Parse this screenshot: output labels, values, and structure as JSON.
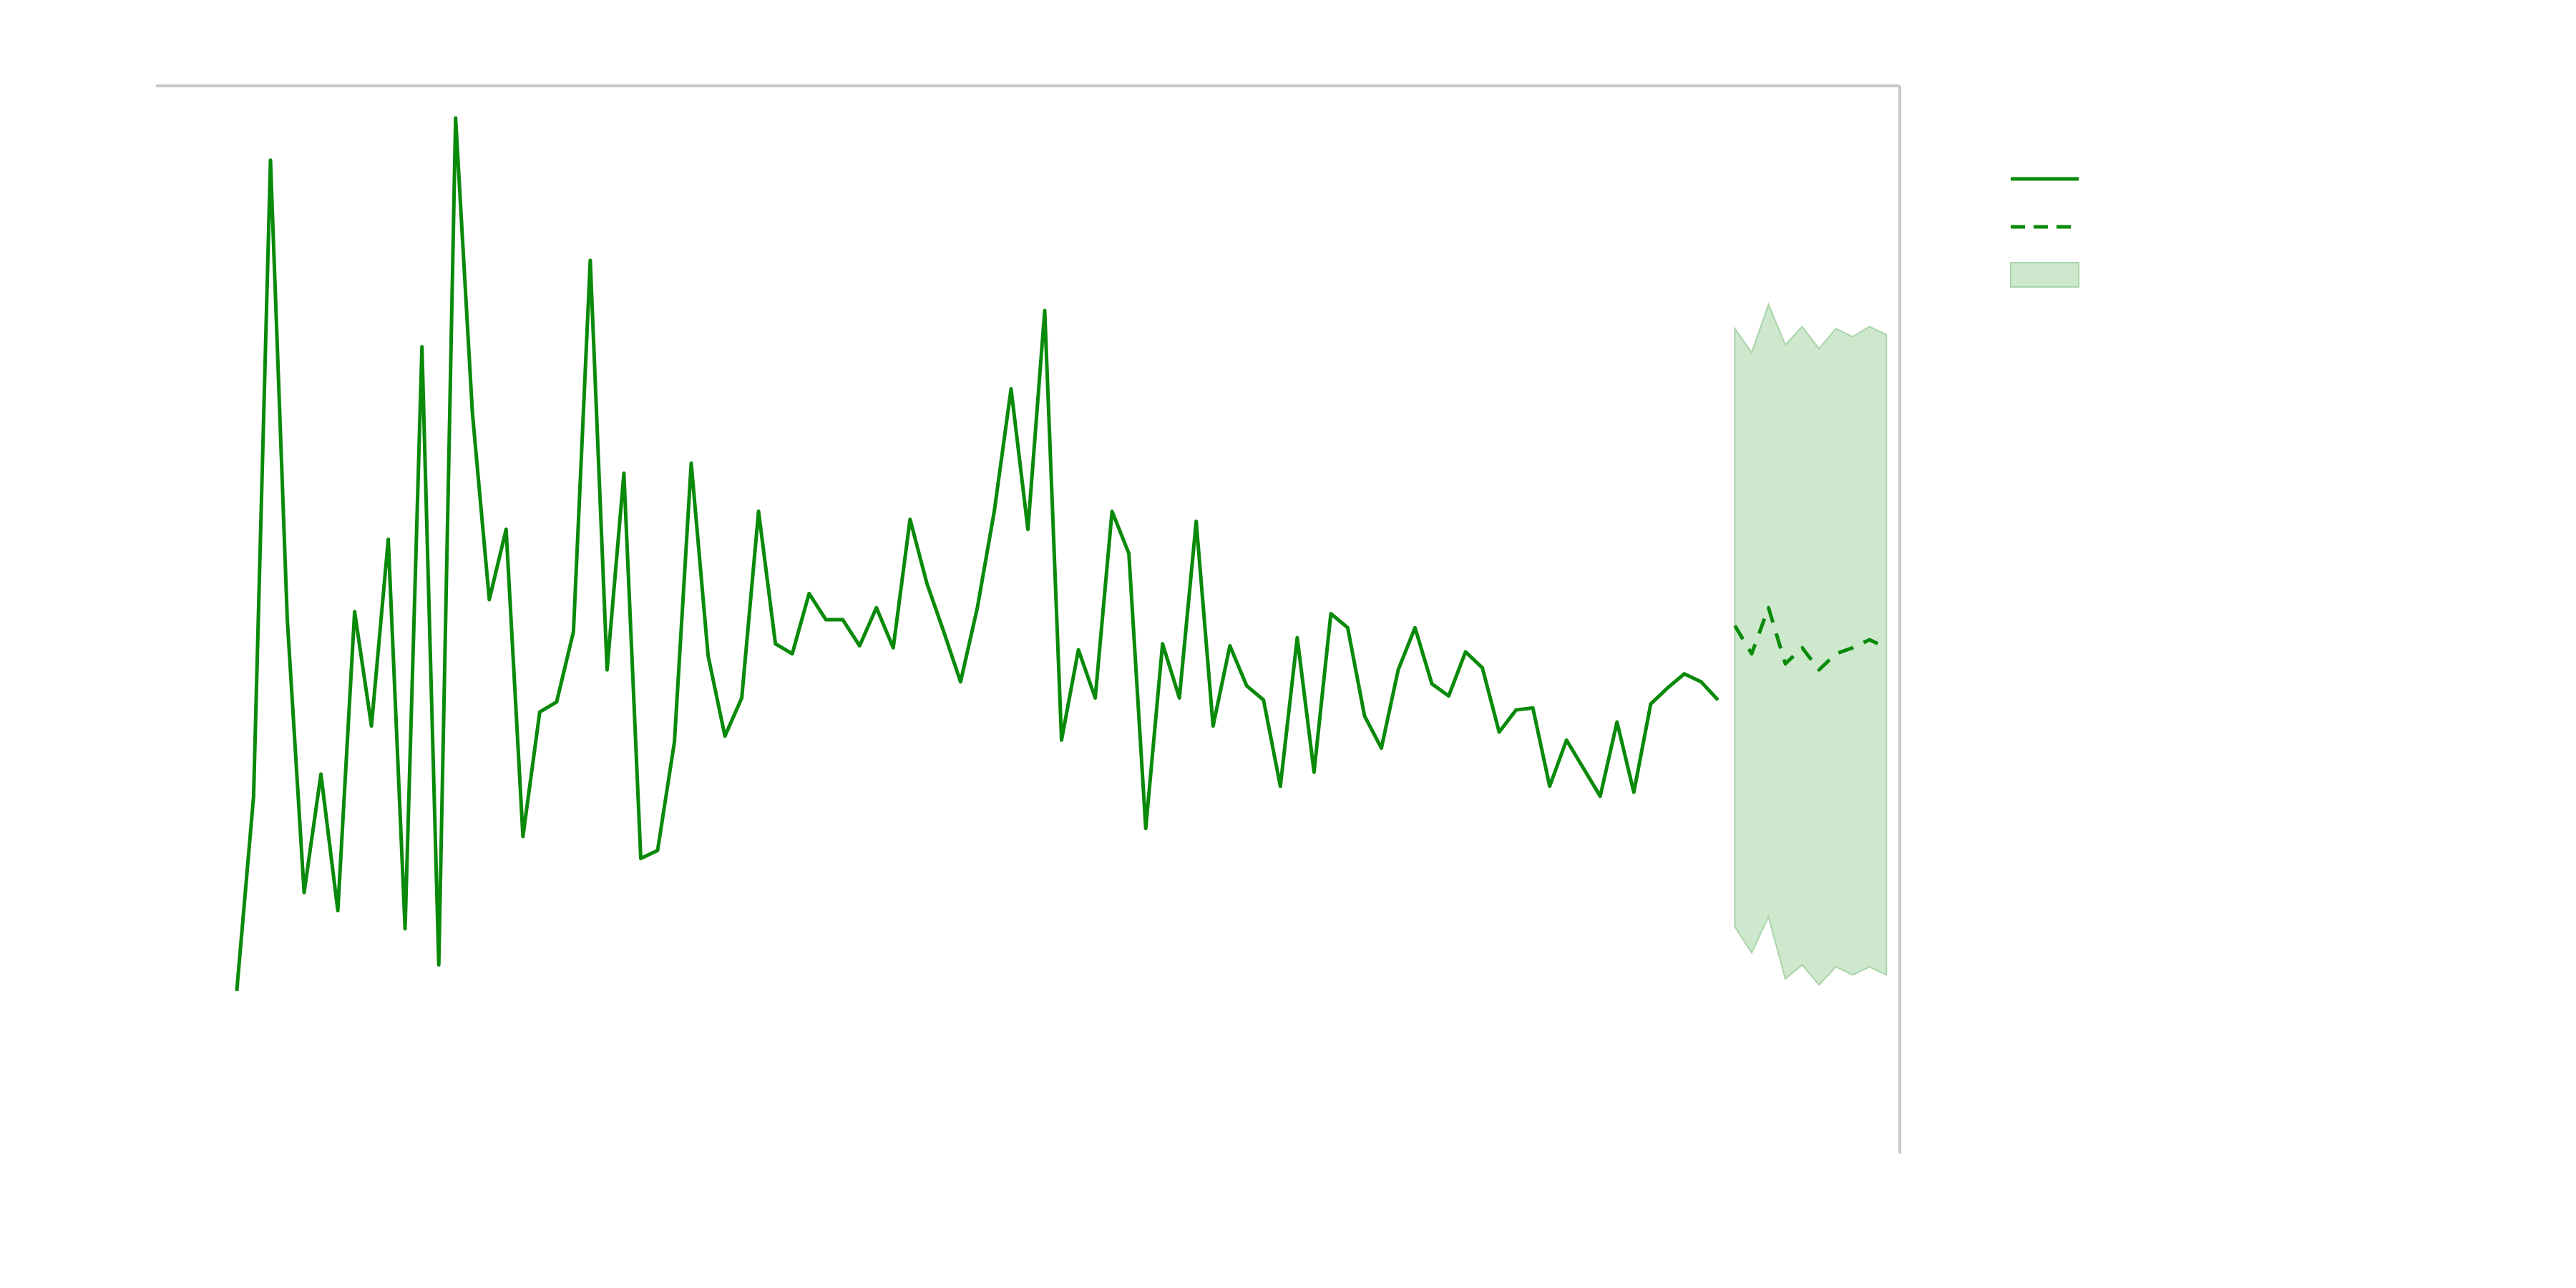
{
  "colors": {
    "series": "#0a8a0a",
    "band_fill": "#cde8cd",
    "band_stroke": "#a8d4a8",
    "axis": "#c8c8c8"
  },
  "chart_data": {
    "type": "line",
    "title": "",
    "xlabel": "",
    "ylabel": "",
    "xlim": [
      -4.8,
      98.8
    ],
    "ylim": [
      -26.6,
      26.6
    ],
    "grid": false,
    "legend_placement": "right-outside",
    "axes_visible": [
      "top",
      "right"
    ],
    "legend": [
      {
        "name": "",
        "style": "solid-line"
      },
      {
        "name": "",
        "style": "dashed-line"
      },
      {
        "name": "",
        "style": "filled-band"
      }
    ],
    "series": [
      {
        "name": "",
        "style": "solid",
        "x": [
          0,
          1,
          2,
          3,
          4,
          5,
          6,
          7,
          8,
          9,
          10,
          11,
          12,
          13,
          14,
          15,
          16,
          17,
          18,
          19,
          20,
          21,
          22,
          23,
          24,
          25,
          26,
          27,
          28,
          29,
          30,
          31,
          32,
          33,
          34,
          35,
          36,
          37,
          38,
          39,
          40,
          41,
          42,
          43,
          44,
          45,
          46,
          47,
          48,
          49,
          50,
          51,
          52,
          53,
          54,
          55,
          56,
          57,
          58,
          59,
          60,
          61,
          62,
          63,
          64,
          65,
          66,
          67,
          68,
          69,
          70,
          71,
          72,
          73,
          74,
          75,
          76,
          77,
          78,
          79,
          80,
          81,
          82,
          83,
          84,
          85,
          86,
          87,
          88
        ],
        "y": [
          -18.5,
          -8.8,
          22.9,
          0.0,
          -13.6,
          -7.7,
          -14.5,
          0.4,
          -5.3,
          4.0,
          -15.4,
          13.6,
          -17.2,
          25.0,
          10.3,
          1.0,
          4.5,
          -10.8,
          -4.6,
          -4.1,
          -0.6,
          17.9,
          -2.5,
          7.3,
          -11.9,
          -11.5,
          -6.1,
          7.8,
          -1.8,
          -5.8,
          -3.9,
          5.4,
          -1.2,
          -1.7,
          1.3,
          0.0,
          0.0,
          -1.3,
          0.6,
          -1.4,
          5.0,
          1.8,
          -0.6,
          -3.1,
          0.6,
          5.4,
          11.5,
          4.5,
          15.4,
          -6.0,
          -1.5,
          -3.9,
          5.4,
          3.3,
          -10.4,
          -1.2,
          -3.9,
          4.9,
          -5.3,
          -1.3,
          -3.3,
          -4.0,
          -8.3,
          -0.9,
          -7.6,
          0.3,
          -0.4,
          -4.8,
          -6.4,
          -2.5,
          -0.4,
          -3.2,
          -3.8,
          -1.6,
          -2.4,
          -5.6,
          -4.5,
          -4.4,
          -8.3,
          -6.0,
          -7.4,
          -8.8,
          -5.1,
          -8.6,
          -4.2,
          -3.4,
          -2.7,
          -3.1,
          -4.0
        ]
      },
      {
        "name": "",
        "style": "dashed",
        "x": [
          89,
          90,
          91,
          92,
          93,
          94,
          95,
          96,
          97,
          98
        ],
        "y": [
          -0.3,
          -1.7,
          0.6,
          -2.2,
          -1.4,
          -2.5,
          -1.7,
          -1.4,
          -1.0,
          -1.4
        ]
      }
    ],
    "band": {
      "name": "",
      "x": [
        89,
        90,
        91,
        92,
        93,
        94,
        95,
        96,
        97,
        98
      ],
      "upper": [
        14.5,
        13.3,
        15.7,
        13.7,
        14.6,
        13.5,
        14.5,
        14.1,
        14.6,
        14.2
      ],
      "lower": [
        -15.3,
        -16.6,
        -14.8,
        -17.9,
        -17.2,
        -18.2,
        -17.3,
        -17.7,
        -17.3,
        -17.7
      ]
    }
  }
}
